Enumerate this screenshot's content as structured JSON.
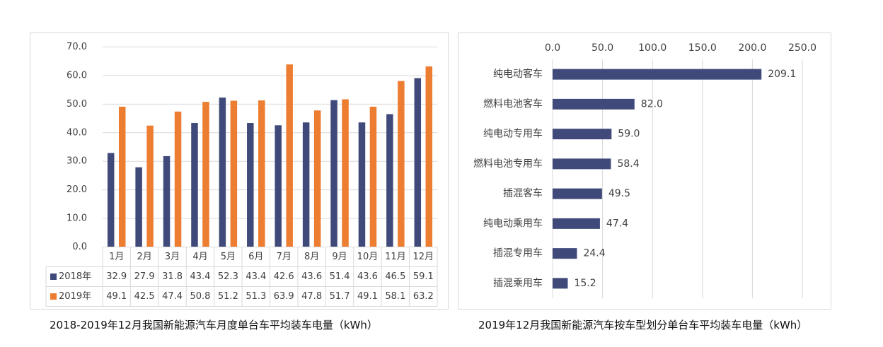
{
  "colors": {
    "series_2018": "#404a7a",
    "series_2019": "#ed7d31",
    "bar_h": "#404a7a",
    "grid": "#d9d9d9"
  },
  "chart_data": [
    {
      "type": "bar",
      "title": "2018-2019年12月我国新能源汽车月度单台车平均装车电量（kWh）",
      "categories": [
        "1月",
        "2月",
        "3月",
        "4月",
        "5月",
        "6月",
        "7月",
        "8月",
        "9月",
        "10月",
        "11月",
        "12月"
      ],
      "series": [
        {
          "name": "2018年",
          "values": [
            32.9,
            27.9,
            31.8,
            43.4,
            52.3,
            43.4,
            42.6,
            43.6,
            51.4,
            43.6,
            46.5,
            59.1
          ]
        },
        {
          "name": "2019年",
          "values": [
            49.1,
            42.5,
            47.4,
            50.8,
            51.2,
            51.3,
            63.9,
            47.8,
            51.7,
            49.1,
            58.1,
            63.2
          ]
        }
      ],
      "ylim": [
        0,
        70
      ],
      "yticks": [
        "0.0",
        "10.0",
        "20.0",
        "30.0",
        "40.0",
        "50.0",
        "60.0",
        "70.0"
      ],
      "data_table": true
    },
    {
      "type": "bar",
      "orientation": "horizontal",
      "title": "2019年12月我国新能源汽车按车型划分单台车平均装车电量（kWh）",
      "categories": [
        "纯电动客车",
        "燃料电池客车",
        "纯电动专用车",
        "燃料电池专用车",
        "插混客车",
        "纯电动乘用车",
        "插混专用车",
        "插混乘用车"
      ],
      "values": [
        209.1,
        82.0,
        59.0,
        58.4,
        49.5,
        47.4,
        24.4,
        15.2
      ],
      "labels": [
        "209.1",
        "82.0",
        "59.0",
        "58.4",
        "49.5",
        "47.4",
        "24.4",
        "15.2"
      ],
      "xlim": [
        0,
        250
      ],
      "xticks": [
        "0.0",
        "50.0",
        "100.0",
        "150.0",
        "200.0",
        "250.0"
      ]
    }
  ]
}
